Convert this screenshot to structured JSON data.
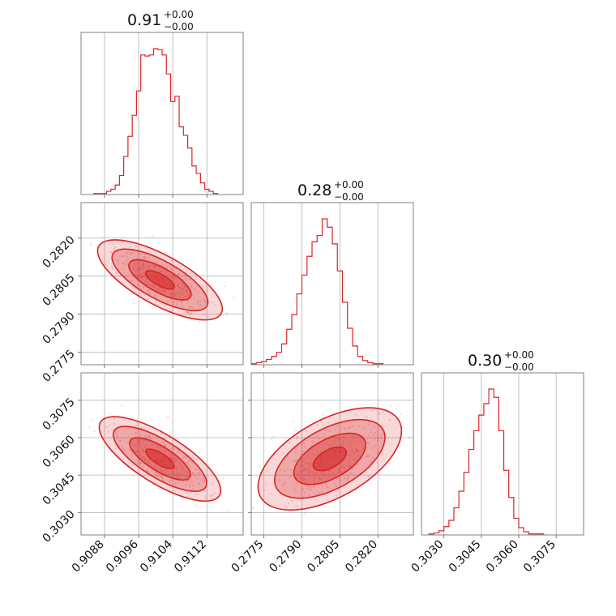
{
  "chart_data": {
    "type": "corner",
    "color": "#d62728",
    "grid": true,
    "parameters": [
      {
        "title": "0.91",
        "err_plus": "+0.00",
        "err_minus": "−0.00",
        "range": [
          0.90825,
          0.91205
        ],
        "ticks": [
          0.9088,
          0.9096,
          0.9104,
          0.9112
        ],
        "tick_labels": [
          "0.9088",
          "0.9096",
          "0.9104",
          "0.9112"
        ],
        "hist": {
          "start": 0.90855,
          "bin_width": 0.0001,
          "counts": [
            1,
            1,
            1,
            3,
            5,
            9,
            18,
            36,
            55,
            75,
            98,
            132,
            131,
            132,
            138,
            137,
            132,
            114,
            88,
            93,
            64,
            56,
            44,
            27,
            20,
            11,
            5,
            3,
            1
          ]
        }
      },
      {
        "title": "0.28",
        "err_plus": "+0.00",
        "err_minus": "−0.00",
        "range": [
          0.277,
          0.2834
        ],
        "ticks": [
          0.2775,
          0.279,
          0.2805,
          0.282
        ],
        "tick_labels": [
          "0.2775",
          "0.2790",
          "0.2805",
          "0.2820"
        ],
        "hist": {
          "start": 0.277,
          "bin_width": 0.0002,
          "counts": [
            1,
            2,
            3,
            5,
            8,
            12,
            20,
            34,
            48,
            68,
            86,
            104,
            118,
            124,
            140,
            132,
            116,
            90,
            60,
            35,
            18,
            8,
            4,
            2,
            1,
            1
          ]
        }
      },
      {
        "title": "0.30",
        "err_plus": "+0.00",
        "err_minus": "−0.00",
        "range": [
          0.3021,
          0.3086
        ],
        "ticks": [
          0.303,
          0.3045,
          0.306,
          0.3075
        ],
        "tick_labels": [
          "0.3030",
          "0.3045",
          "0.3060",
          "0.3075"
        ],
        "hist": {
          "start": 0.3024,
          "bin_width": 0.0002,
          "counts": [
            1,
            2,
            4,
            8,
            14,
            26,
            42,
            60,
            82,
            100,
            115,
            126,
            140,
            132,
            100,
            62,
            36,
            16,
            7,
            3,
            1,
            1,
            1
          ]
        }
      }
    ],
    "pairs": [
      {
        "x_param": 0,
        "y_param": 1,
        "slope": -0.55,
        "x_center": 0.9101,
        "y_center": 0.28035,
        "x_sigma": 0.00042,
        "perp_sigma": 0.00025
      },
      {
        "x_param": 0,
        "y_param": 2,
        "slope": -0.62,
        "x_center": 0.9101,
        "y_center": 0.30515,
        "x_sigma": 0.00042,
        "perp_sigma": 0.00025
      },
      {
        "x_param": 1,
        "y_param": 2,
        "slope": 0.55,
        "x_center": 0.2801,
        "y_center": 0.30515,
        "x_sigma": 0.0008,
        "perp_sigma": 0.0004
      }
    ]
  }
}
